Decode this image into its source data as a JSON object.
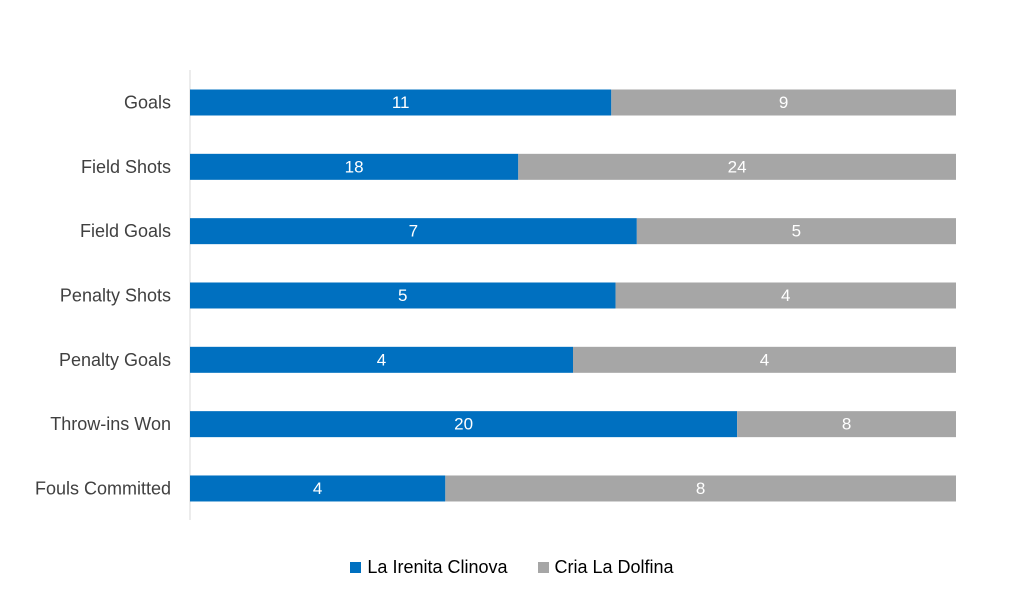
{
  "chart_data": {
    "type": "bar",
    "orientation": "horizontal",
    "stacking": "percent",
    "categories": [
      "Goals",
      "Field Shots",
      "Field Goals",
      "Penalty Shots",
      "Penalty Goals",
      "Throw-ins Won",
      "Fouls Committed"
    ],
    "series": [
      {
        "name": "La Irenita Clinova",
        "values": [
          11,
          18,
          7,
          5,
          4,
          20,
          4
        ],
        "color": "#0070c0"
      },
      {
        "name": "Cria La Dolfina",
        "values": [
          9,
          24,
          5,
          4,
          4,
          8,
          8
        ],
        "color": "#a6a6a6"
      }
    ],
    "legend_position": "bottom",
    "grid": false
  }
}
